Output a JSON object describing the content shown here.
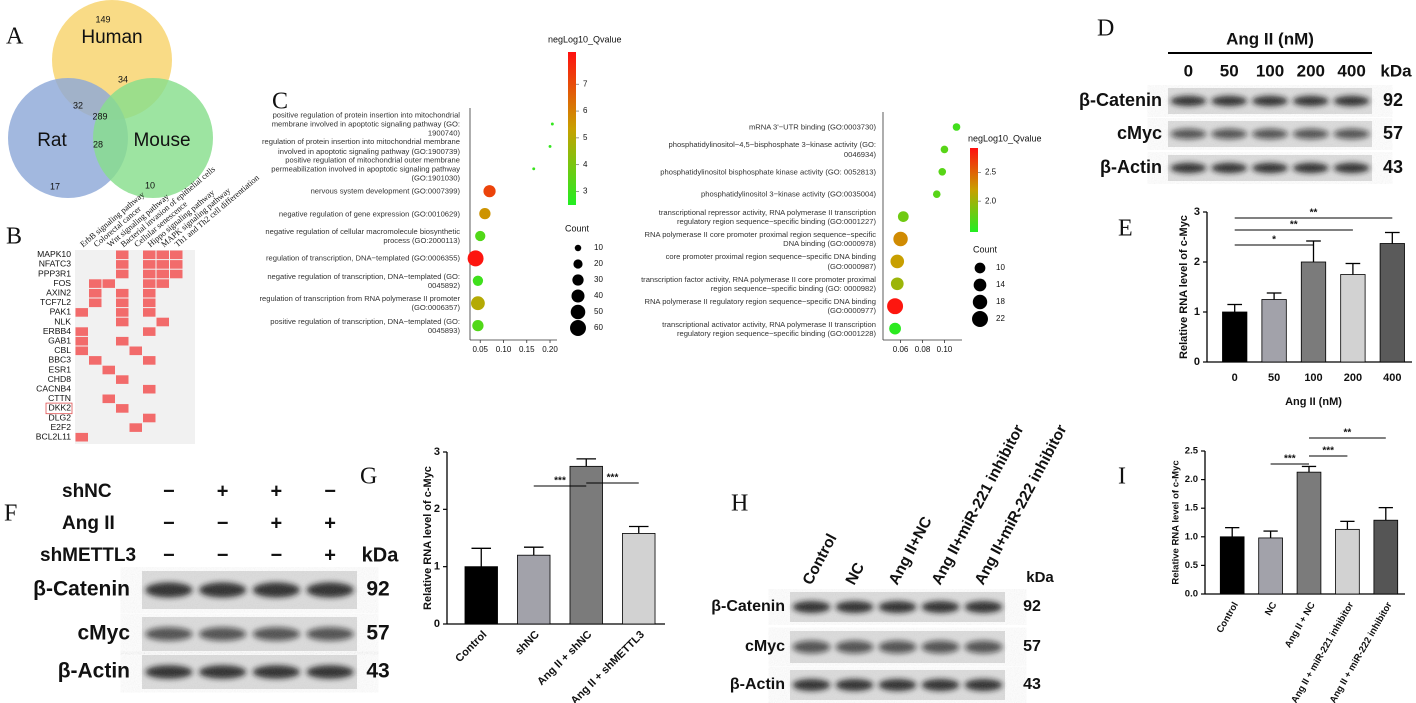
{
  "chart_data": [
    {
      "type": "venn",
      "panel": "A",
      "sets": [
        {
          "name": "Human",
          "color": "#f8d36b"
        },
        {
          "name": "Rat",
          "color": "#8ea8d8"
        },
        {
          "name": "Mouse",
          "color": "#88de8c"
        }
      ],
      "regions": {
        "only_human": 149,
        "only_rat": 17,
        "only_mouse": 10,
        "human_rat": 32,
        "human_mouse": 34,
        "rat_mouse": 28,
        "all": 289
      }
    },
    {
      "type": "heatmap",
      "panel": "B",
      "color": "#f26b6b",
      "background": "#f1f1f1",
      "pathways": [
        "ErbB signaling pathway",
        "Colorectal cancer",
        "Wnt signaling pathway",
        "Bacterial invasion of epithelial cells",
        "Cellular senescence",
        "Hippo signaling pathway",
        "MAPK signaling pathway",
        "Th1 and Th2 cell differentiation"
      ],
      "genes": [
        "MAPK10",
        "NFATC3",
        "PPP3R1",
        "FOS",
        "AXIN2",
        "TCF7L2",
        "PAK1",
        "NLK",
        "ERBB4",
        "GAB1",
        "CBL",
        "BBC3",
        "ESR1",
        "CHD8",
        "CACNB4",
        "CTTN",
        "DKK2",
        "DLG2",
        "E2F2",
        "BCL2L11"
      ],
      "matrix": [
        [
          0,
          0,
          0,
          1,
          0,
          1,
          1,
          1
        ],
        [
          0,
          0,
          0,
          1,
          0,
          1,
          1,
          1
        ],
        [
          0,
          0,
          0,
          1,
          0,
          1,
          1,
          1
        ],
        [
          0,
          1,
          1,
          0,
          0,
          1,
          1,
          0
        ],
        [
          0,
          1,
          0,
          1,
          0,
          1,
          0,
          0
        ],
        [
          0,
          1,
          0,
          1,
          0,
          1,
          0,
          0
        ],
        [
          1,
          0,
          0,
          1,
          0,
          1,
          0,
          0
        ],
        [
          0,
          0,
          0,
          1,
          0,
          0,
          1,
          0
        ],
        [
          1,
          0,
          0,
          0,
          0,
          1,
          0,
          0
        ],
        [
          1,
          0,
          0,
          1,
          0,
          0,
          0,
          0
        ],
        [
          1,
          0,
          0,
          0,
          1,
          0,
          0,
          0
        ],
        [
          0,
          1,
          0,
          0,
          0,
          1,
          0,
          0
        ],
        [
          0,
          0,
          1,
          0,
          0,
          0,
          0,
          0
        ],
        [
          0,
          0,
          0,
          1,
          0,
          0,
          0,
          0
        ],
        [
          0,
          0,
          0,
          0,
          0,
          1,
          0,
          0
        ],
        [
          0,
          0,
          1,
          0,
          0,
          0,
          0,
          0
        ],
        [
          0,
          0,
          0,
          1,
          0,
          0,
          0,
          0
        ],
        [
          0,
          0,
          0,
          0,
          0,
          1,
          0,
          0
        ],
        [
          0,
          0,
          0,
          0,
          1,
          0,
          0,
          0
        ],
        [
          1,
          0,
          0,
          0,
          0,
          0,
          0,
          0
        ]
      ]
    },
    {
      "type": "dotplot",
      "panel": "C",
      "terms": [
        "positive regulation of protein insertion into mitochondrial membrane involved in apoptotic signaling pathway (GO: 1900740)",
        "regulation of protein insertion into mitochondrial membrane involved in apoptotic signaling pathway (GO:1900739)",
        "positive regulation of mitochondrial outer membrane permeabilization involved in apoptotic signaling pathway (GO:1901030)",
        "nervous system development (GO:0007399)",
        "negative regulation of gene expression (GO:0010629)",
        "negative regulation of cellular macromolecule biosynthetic process (GO:2000113)",
        "regulation of transcription, DNA−templated (GO:0006355)",
        "negative regulation of transcription, DNA−templated (GO: 0045892)",
        "regulation of transcription from RNA polymerase II promoter (GO:0006357)",
        "positive regulation of transcription, DNA−templated (GO: 0045893)"
      ],
      "x": [
        0.205,
        0.2,
        0.165,
        0.07,
        0.06,
        0.05,
        0.04,
        0.045,
        0.045,
        0.045
      ],
      "counts": [
        2,
        2,
        2,
        35,
        30,
        25,
        60,
        25,
        45,
        30
      ],
      "qvalues": [
        2.8,
        2.8,
        2.9,
        7.2,
        5.6,
        3.3,
        8.1,
        3.0,
        5.0,
        3.3
      ],
      "xlim": [
        0.028,
        0.215
      ],
      "xticks": [
        0.05,
        {
          "value": 0.1,
          "label": "0.10"
        },
        0.15,
        {
          "value": 0.2,
          "label": "0.20"
        }
      ],
      "color_title": "negLog10_Qvalue",
      "clim": [
        2.5,
        8.2
      ],
      "cticks": [
        3,
        4,
        5,
        6,
        7
      ],
      "color_scale": [
        "#22ee22",
        "#c8a000",
        "#ff1010"
      ],
      "size_title": "Count",
      "size_ticks": [
        10,
        20,
        30,
        40,
        50,
        60
      ]
    },
    {
      "type": "dotplot",
      "terms": [
        "mRNA 3'−UTR binding (GO:0003730)",
        "phosphatidylinositol−4,5−bisphosphate 3−kinase activity (GO: 0046934)",
        "phosphatidylinositol bisphosphate kinase activity (GO: 0052813)",
        "phosphatidylinositol 3−kinase activity (GO:0035004)",
        "transcriptional repressor activity, RNA polymerase II transcription regulatory region sequence−specific binding (GO:0001227)",
        "RNA polymerase II core promoter proximal region sequence−specific DNA binding (GO:0000978)",
        "core promoter proximal region sequence−specific DNA binding (GO:0000987)",
        "transcription factor activity, RNA polymerase II core promoter proximal region sequence−specific binding (GO: 0000982)",
        "RNA polymerase II regulatory region sequence−specific DNA binding (GO:0000977)",
        "transcriptional activator activity, RNA polymerase II transcription regulatory region sequence−specific binding (GO:0001228)"
      ],
      "x": [
        0.111,
        0.1,
        0.098,
        0.093,
        0.0625,
        0.06,
        0.057,
        0.057,
        0.055,
        0.055
      ],
      "counts": [
        5,
        5,
        5,
        5,
        10,
        18,
        16,
        14,
        22,
        12
      ],
      "qvalues": [
        1.6,
        1.7,
        1.7,
        1.7,
        1.8,
        2.3,
        2.2,
        2.0,
        2.9,
        1.5
      ],
      "xlim": [
        0.044,
        0.116
      ],
      "xticks": [
        0.06,
        0.08,
        {
          "value": 0.1,
          "label": "0.10"
        }
      ],
      "color_title": "negLog10_Qvalue",
      "clim": [
        1.46,
        2.93
      ],
      "cticks": [
        {
          "value": 2,
          "label": "2.0"
        },
        2.5
      ],
      "color_scale": [
        "#22ee22",
        "#c8a000",
        "#ff1010"
      ],
      "size_title": "Count",
      "size_ticks": [
        10,
        14,
        18,
        22
      ]
    },
    {
      "type": "blot",
      "panel": "D",
      "title": "Ang II (nM)",
      "lanes": [
        "0",
        "50",
        "100",
        "200",
        "400"
      ],
      "kda_label": "kDa",
      "rows": [
        {
          "name": "β-Catenin",
          "kda": 92
        },
        {
          "name": "cMyc",
          "kda": 57
        },
        {
          "name": "β-Actin",
          "kda": 43
        }
      ]
    },
    {
      "type": "bar",
      "panel": "E",
      "ylabel": "Relative RNA level of c-Myc",
      "xlabel": "Ang II (nM)",
      "categories": [
        "0",
        "50",
        "100",
        "200",
        "400"
      ],
      "values": [
        1.0,
        1.25,
        2.0,
        1.75,
        2.37
      ],
      "errors": [
        0.15,
        0.13,
        0.42,
        0.22,
        0.22
      ],
      "colors": [
        "#000000",
        "#a2a2aa",
        "#7b7b7b",
        "#d2d2d2",
        "#5a5a5a"
      ],
      "ylim": [
        0,
        3
      ],
      "yticks": [
        0,
        1,
        2,
        3
      ],
      "significance": [
        {
          "from": 0,
          "to": 2,
          "label": "*"
        },
        {
          "from": 0,
          "to": 3,
          "label": "**"
        },
        {
          "from": 0,
          "to": 4,
          "label": "**"
        }
      ]
    },
    {
      "type": "blot",
      "panel": "F",
      "kda_label": "kDa",
      "conditions": [
        {
          "name": "shNC",
          "signs": [
            "−",
            "+",
            "+",
            "−"
          ]
        },
        {
          "name": "Ang II",
          "signs": [
            "−",
            "−",
            "+",
            "+"
          ]
        },
        {
          "name": "shMETTL3",
          "signs": [
            "−",
            "−",
            "−",
            "+"
          ]
        }
      ],
      "rows": [
        {
          "name": "β-Catenin",
          "kda": 92
        },
        {
          "name": "cMyc",
          "kda": 57
        },
        {
          "name": "β-Actin",
          "kda": 43
        }
      ]
    },
    {
      "type": "bar",
      "panel": "G",
      "ylabel": "Relative RNA level of c-Myc",
      "categories": [
        "Control",
        "shNC",
        "Ang II + shNC",
        "Ang II + shMETTL3"
      ],
      "values": [
        1.0,
        1.2,
        2.75,
        1.58
      ],
      "errors": [
        0.32,
        0.14,
        0.13,
        0.12
      ],
      "colors": [
        "#000000",
        "#a2a2aa",
        "#7b7b7b",
        "#d2d2d2"
      ],
      "ylim": [
        0,
        3
      ],
      "yticks": [
        0,
        1,
        2,
        3
      ],
      "significance": [
        {
          "from": 1,
          "to": 2,
          "label": "***"
        },
        {
          "from": 2,
          "to": 3,
          "label": "***"
        }
      ]
    },
    {
      "type": "blot",
      "panel": "H",
      "lanes": [
        "Control",
        "NC",
        "Ang II+NC",
        "Ang II+miR-221 inhibitor",
        "Ang II+miR-222 inhibitor"
      ],
      "kda_label": "kDa",
      "rows": [
        {
          "name": "β-Catenin",
          "kda": 92
        },
        {
          "name": "cMyc",
          "kda": 57
        },
        {
          "name": "β-Actin",
          "kda": 43
        }
      ]
    },
    {
      "type": "bar",
      "panel": "I",
      "ylabel": "Relative RNA level of c-Myc",
      "categories": [
        "Control",
        "NC",
        "Ang II + NC",
        "Ang II + miR-221 inhibitor",
        "Ang II + miR-222 inhibitor"
      ],
      "values": [
        1.0,
        0.98,
        2.13,
        1.13,
        1.29
      ],
      "errors": [
        0.16,
        0.12,
        0.1,
        0.14,
        0.22
      ],
      "colors": [
        "#000000",
        "#a2a2aa",
        "#7b7b7b",
        "#d2d2d2",
        "#555555"
      ],
      "ylim": [
        0,
        2.5
      ],
      "yticks": [
        {
          "value": 0,
          "label": "0.0"
        },
        0.5,
        {
          "value": 1,
          "label": "1.0"
        },
        1.5,
        {
          "value": 2,
          "label": "2.0"
        },
        2.5
      ],
      "significance": [
        {
          "from": 1,
          "to": 2,
          "label": "***"
        },
        {
          "from": 2,
          "to": 3,
          "label": "***"
        },
        {
          "from": 2,
          "to": 4,
          "label": "**"
        }
      ]
    }
  ]
}
